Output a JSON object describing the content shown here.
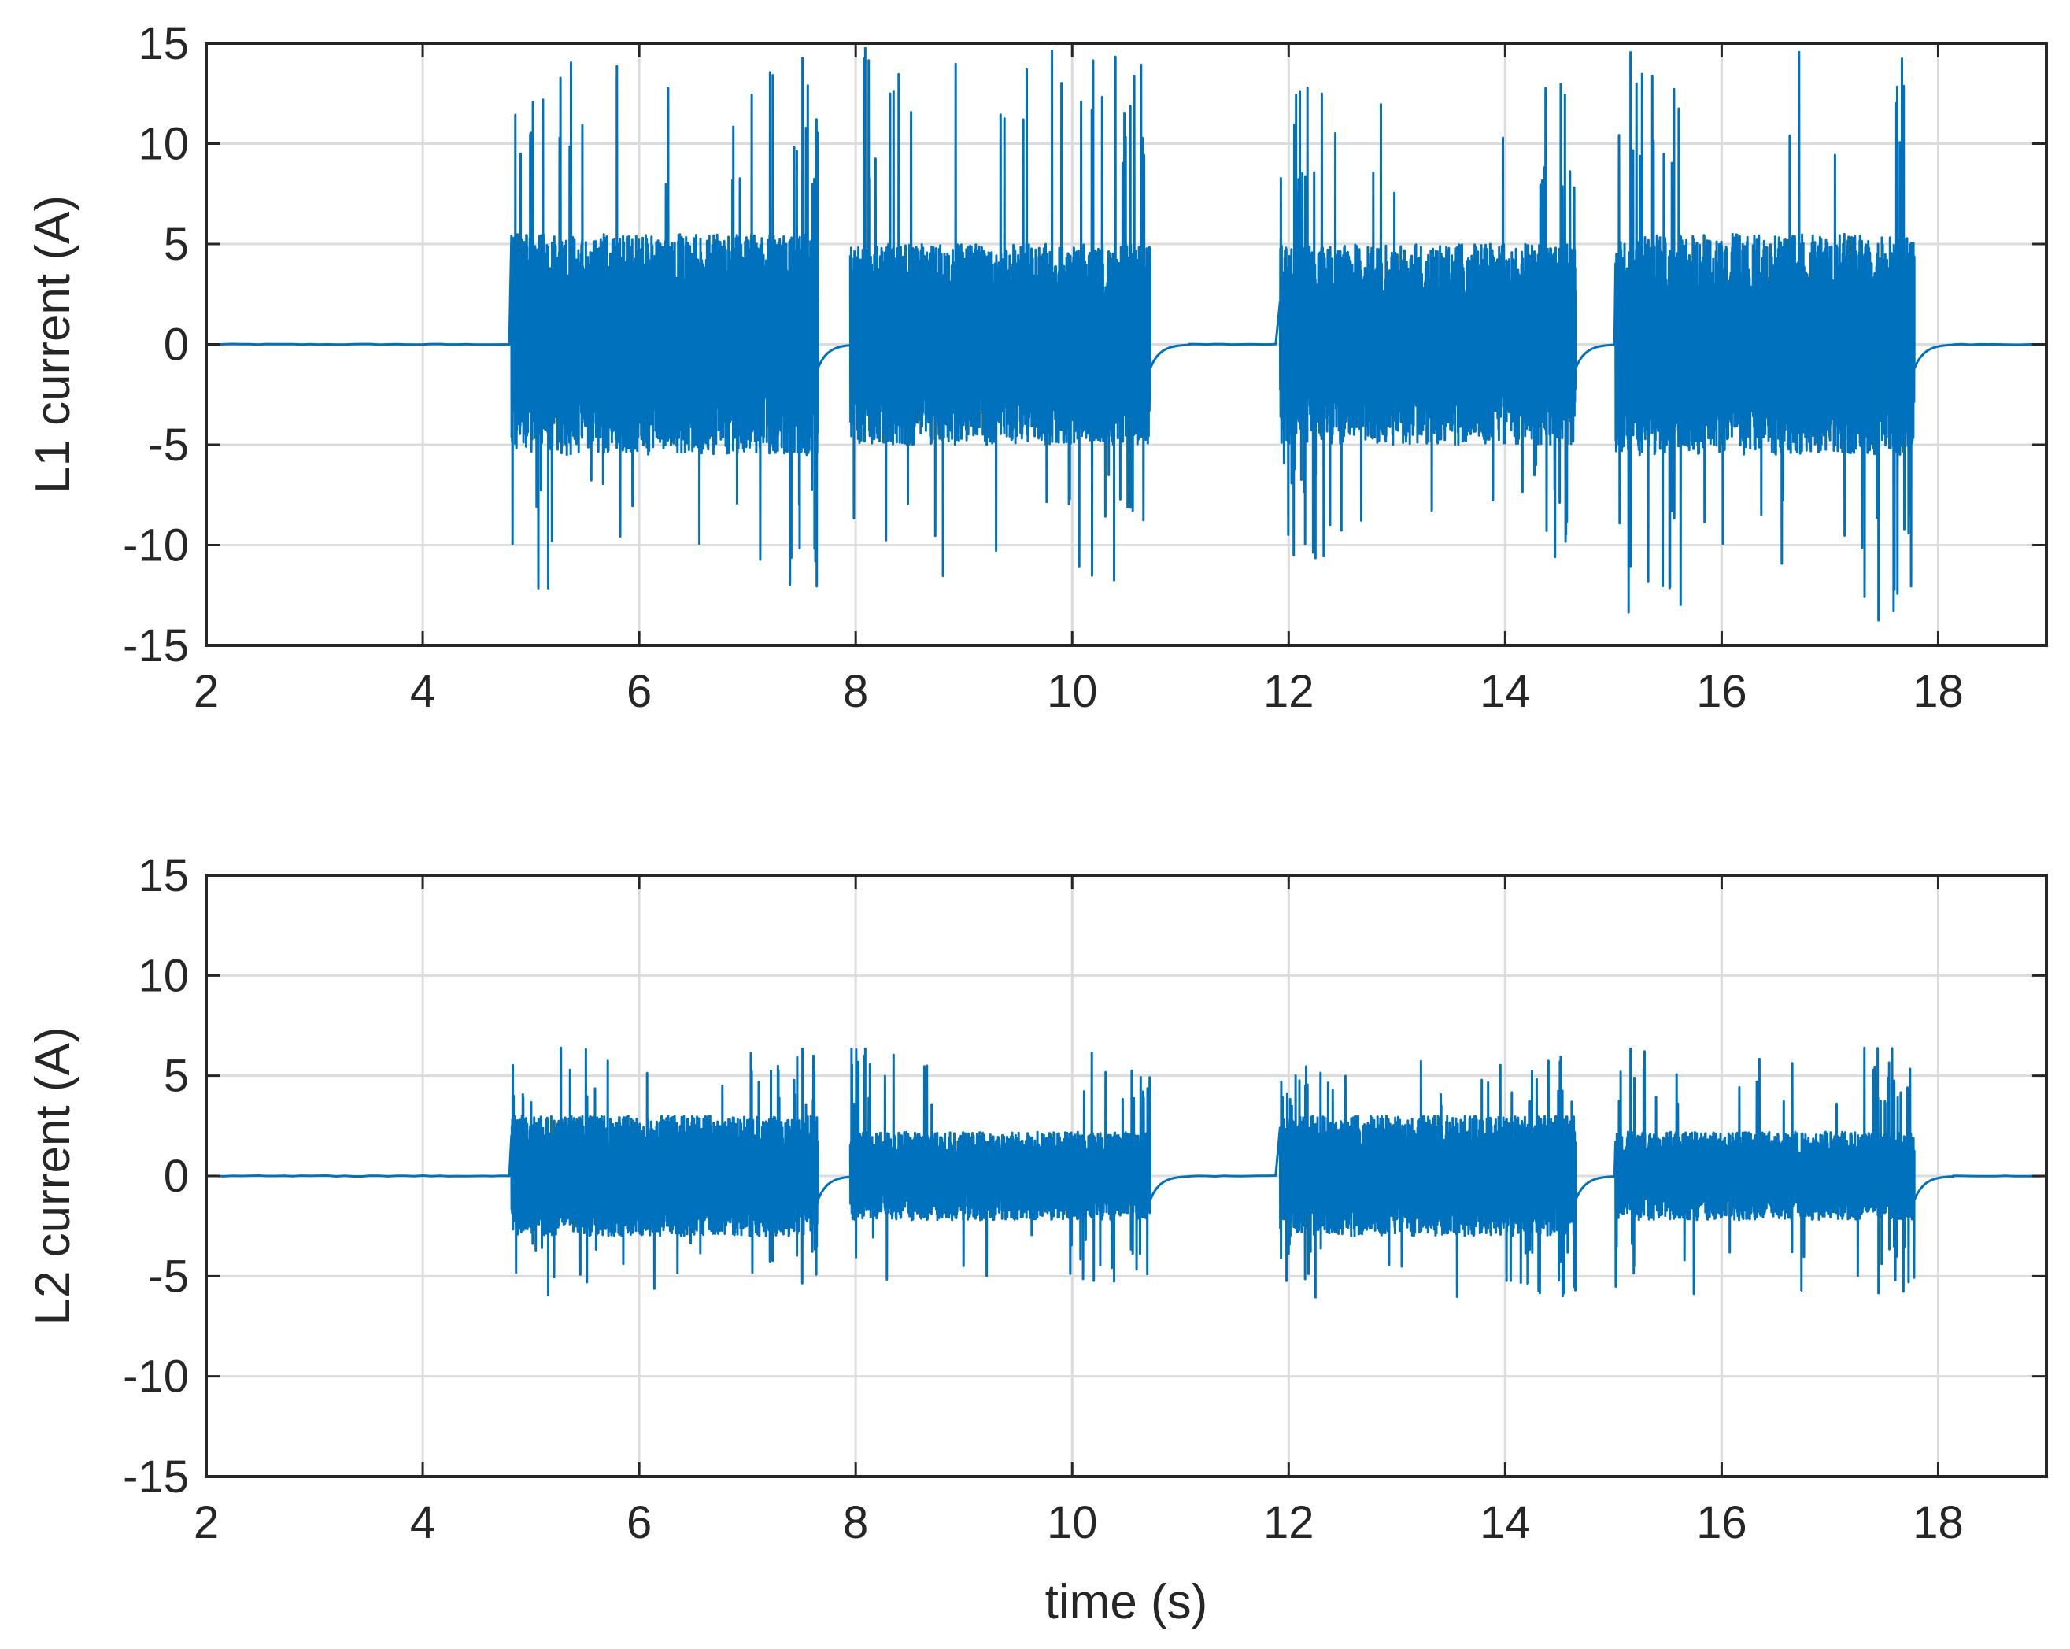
{
  "chart_data": [
    {
      "type": "line",
      "xlabel": "",
      "ylabel": "L1 current (A)",
      "xlim": [
        2,
        19
      ],
      "ylim": [
        -15,
        15
      ],
      "xticks": [
        "2",
        "4",
        "6",
        "8",
        "10",
        "12",
        "14",
        "16",
        "18"
      ],
      "yticks": [
        "-15",
        "-10",
        "-5",
        "0",
        "5",
        "10",
        "15"
      ],
      "grid": true,
      "color": "#0072BD",
      "series": [
        {
          "name": "",
          "idle_level": 0,
          "bursts": [
            {
              "t_start": 4.82,
              "t_end": 7.65,
              "typical_peak": 5.5,
              "typical_trough": -5.5,
              "max": 14.3,
              "min": -12.2
            },
            {
              "t_start": 7.95,
              "t_end": 10.72,
              "typical_peak": 5.0,
              "typical_trough": -5.0,
              "max": 14.8,
              "min": -11.8
            },
            {
              "t_start": 11.92,
              "t_end": 14.65,
              "typical_peak": 5.0,
              "typical_trough": -5.0,
              "max": 13.0,
              "min": -10.7
            },
            {
              "t_start": 15.02,
              "t_end": 17.78,
              "typical_peak": 5.5,
              "typical_trough": -5.5,
              "max": 14.6,
              "min": -13.8
            }
          ]
        }
      ]
    },
    {
      "type": "line",
      "xlabel": "time (s)",
      "ylabel": "L2 current (A)",
      "xlim": [
        2,
        19
      ],
      "ylim": [
        -15,
        15
      ],
      "xticks": [
        "2",
        "4",
        "6",
        "8",
        "10",
        "12",
        "14",
        "16",
        "18"
      ],
      "yticks": [
        "-15",
        "-10",
        "-5",
        "0",
        "5",
        "10",
        "15"
      ],
      "grid": true,
      "color": "#0072BD",
      "series": [
        {
          "name": "",
          "idle_level": 0,
          "bursts": [
            {
              "t_start": 4.82,
              "t_end": 7.65,
              "typical_peak": 3.0,
              "typical_trough": -3.0,
              "max": 6.4,
              "min": -6.0
            },
            {
              "t_start": 7.95,
              "t_end": 10.72,
              "typical_peak": 2.2,
              "typical_trough": -2.2,
              "max": 6.4,
              "min": -5.3
            },
            {
              "t_start": 11.92,
              "t_end": 14.65,
              "typical_peak": 3.0,
              "typical_trough": -3.0,
              "max": 6.0,
              "min": -6.1
            },
            {
              "t_start": 15.02,
              "t_end": 17.78,
              "typical_peak": 2.2,
              "typical_trough": -2.2,
              "max": 6.4,
              "min": -5.9
            }
          ]
        }
      ]
    }
  ]
}
